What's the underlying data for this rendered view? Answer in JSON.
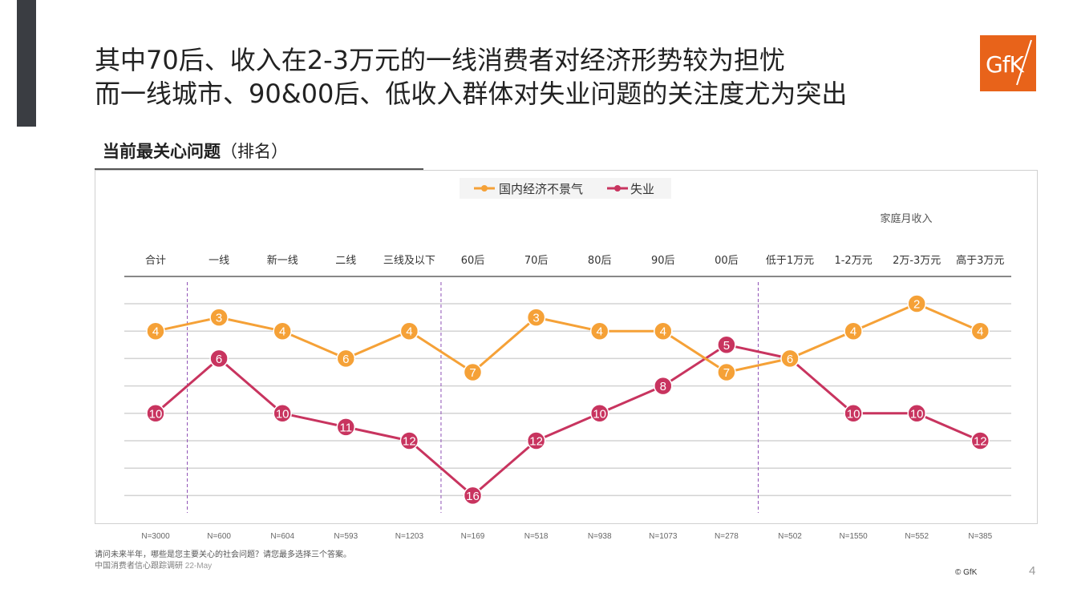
{
  "title": {
    "line1": "其中70后、收入在2-3万元的一线消费者对经济形势较为担忧",
    "line2": "而一线城市、90&00后、低收入群体对失业问题的关注度尤为突出"
  },
  "logo": {
    "text": "GfK",
    "color": "#e8631a"
  },
  "subtitle": {
    "bold": "当前最关心问题",
    "normal": "（排名）"
  },
  "chart_data": {
    "type": "line",
    "title": "当前最关心问题（排名）",
    "categories": [
      "合计",
      "一线",
      "新一线",
      "二线",
      "三线及以下",
      "60后",
      "70后",
      "80后",
      "90后",
      "00后",
      "低于1万元",
      "1-2万元",
      "2万-3万元",
      "高于3万元"
    ],
    "sample_sizes": [
      "N=3000",
      "N=600",
      "N=604",
      "N=593",
      "N=1203",
      "N=169",
      "N=518",
      "N=938",
      "N=1073",
      "N=278",
      "N=502",
      "N=1550",
      "N=552",
      "N=385"
    ],
    "series": [
      {
        "name": "国内经济不景气",
        "color": "#f5a137",
        "values": [
          4,
          3,
          4,
          6,
          4,
          7,
          3,
          4,
          4,
          7,
          6,
          4,
          2,
          4
        ]
      },
      {
        "name": "失业",
        "color": "#c8345f",
        "values": [
          10,
          6,
          10,
          11,
          12,
          16,
          12,
          10,
          8,
          5,
          6,
          10,
          10,
          12
        ]
      }
    ],
    "group_label": "家庭月收入",
    "ylim": [
      0,
      16
    ],
    "y_inverted": true,
    "legend_position": "top-center",
    "grid": true,
    "xlabel": "",
    "ylabel": ""
  },
  "footnote": {
    "question": "请问未来半年，哪些是您主要关心的社会问题？请您最多选择三个答案。",
    "source": "中国消费者信心跟踪调研",
    "date": "22-May"
  },
  "copyright": "© GfK",
  "page_number": "4"
}
